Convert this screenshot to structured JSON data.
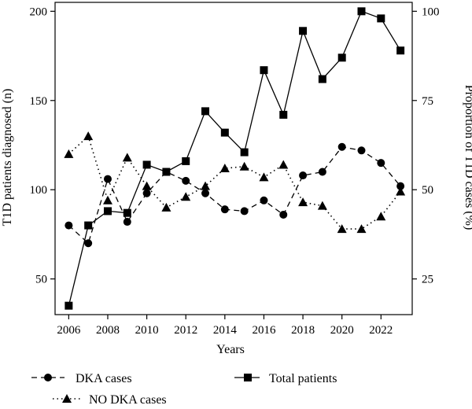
{
  "chart_data": {
    "type": "line",
    "title": "",
    "xlabel": "Years",
    "ylabel_left": "T1D patients diagnosed (n)",
    "ylabel_right": "Proportion of T1D cases (%)",
    "xlim": [
      2005.3,
      2023.6
    ],
    "ylim_left": [
      30,
      205
    ],
    "ylim_right": [
      15,
      102.5
    ],
    "x_ticks": [
      2006,
      2008,
      2010,
      2012,
      2014,
      2016,
      2018,
      2020,
      2022
    ],
    "y_left_ticks": [
      50,
      100,
      150,
      200
    ],
    "y_right_ticks": [
      25,
      50,
      75,
      100
    ],
    "grid": false,
    "legend_position": "bottom",
    "x": [
      2006,
      2007,
      2008,
      2009,
      2010,
      2011,
      2012,
      2013,
      2014,
      2015,
      2016,
      2017,
      2018,
      2019,
      2020,
      2021,
      2022,
      2023
    ],
    "series": [
      {
        "name": "DKA cases",
        "axis": "right",
        "marker": "circle",
        "line": "dashed",
        "color": "#000000",
        "values": [
          40,
          35,
          53,
          41,
          49,
          55,
          52.5,
          49,
          44.5,
          44,
          47,
          43,
          54,
          55,
          62,
          61,
          57.5,
          51
        ]
      },
      {
        "name": "NO DKA cases",
        "axis": "right",
        "marker": "triangle",
        "line": "dotted",
        "color": "#000000",
        "values": [
          60,
          65,
          47,
          59,
          51,
          45,
          48,
          51,
          56,
          56.5,
          53.5,
          57,
          46.5,
          45.5,
          39,
          39,
          42.5,
          49.5
        ]
      },
      {
        "name": "Total patients",
        "axis": "left",
        "marker": "square",
        "line": "solid",
        "color": "#000000",
        "values": [
          35,
          80,
          88,
          87,
          114,
          110,
          116,
          144,
          132,
          121,
          167,
          142,
          189,
          162,
          174,
          200,
          196,
          178
        ]
      }
    ]
  }
}
